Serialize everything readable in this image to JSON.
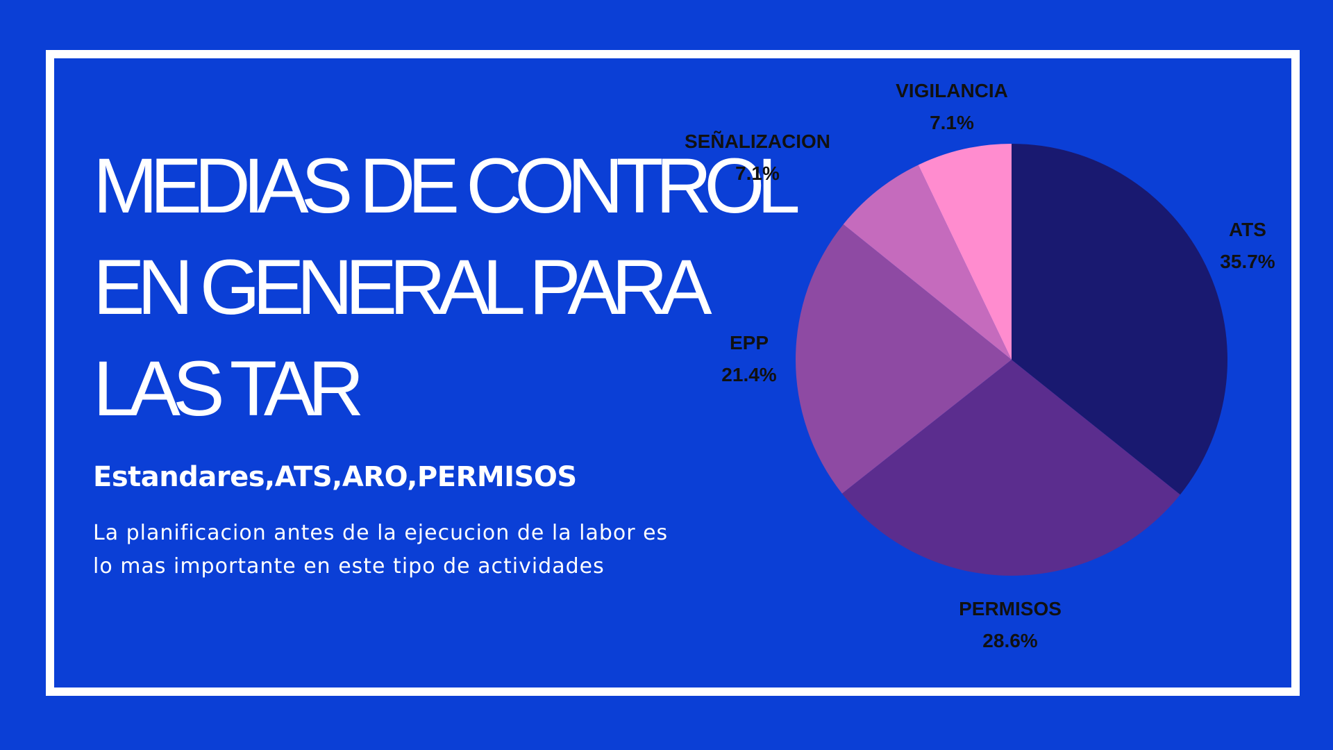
{
  "slide": {
    "title_lines": [
      "MEDIAS DE CONTROL",
      "EN GENERAL PARA",
      "LAS TAR"
    ],
    "subtitle": "Estandares,ATS,ARO,PERMISOS",
    "body_lines": [
      "La planificacion antes de la ejecucion de la labor es",
      "lo mas importante en este tipo de actividades"
    ]
  },
  "colors": {
    "background": "#0b3fd6",
    "frame": "#ffffff",
    "text": "#ffffff",
    "label_text": "#111111"
  },
  "chart_data": {
    "type": "pie",
    "start": "12 o'clock, clockwise",
    "slices": [
      {
        "label": "ATS",
        "value": 35.7,
        "value_label": "35.7%",
        "color": "#191970"
      },
      {
        "label": "PERMISOS",
        "value": 28.6,
        "value_label": "28.6%",
        "color": "#5b2d8e"
      },
      {
        "label": "EPP",
        "value": 21.4,
        "value_label": "21.4%",
        "color": "#8e4aa3"
      },
      {
        "label": "SEÑALIZACION",
        "value": 7.1,
        "value_label": "7.1%",
        "color": "#c56bbd"
      },
      {
        "label": "VIGILANCIA",
        "value": 7.1,
        "value_label": "7.1%",
        "color": "#ff8ccf"
      }
    ]
  }
}
